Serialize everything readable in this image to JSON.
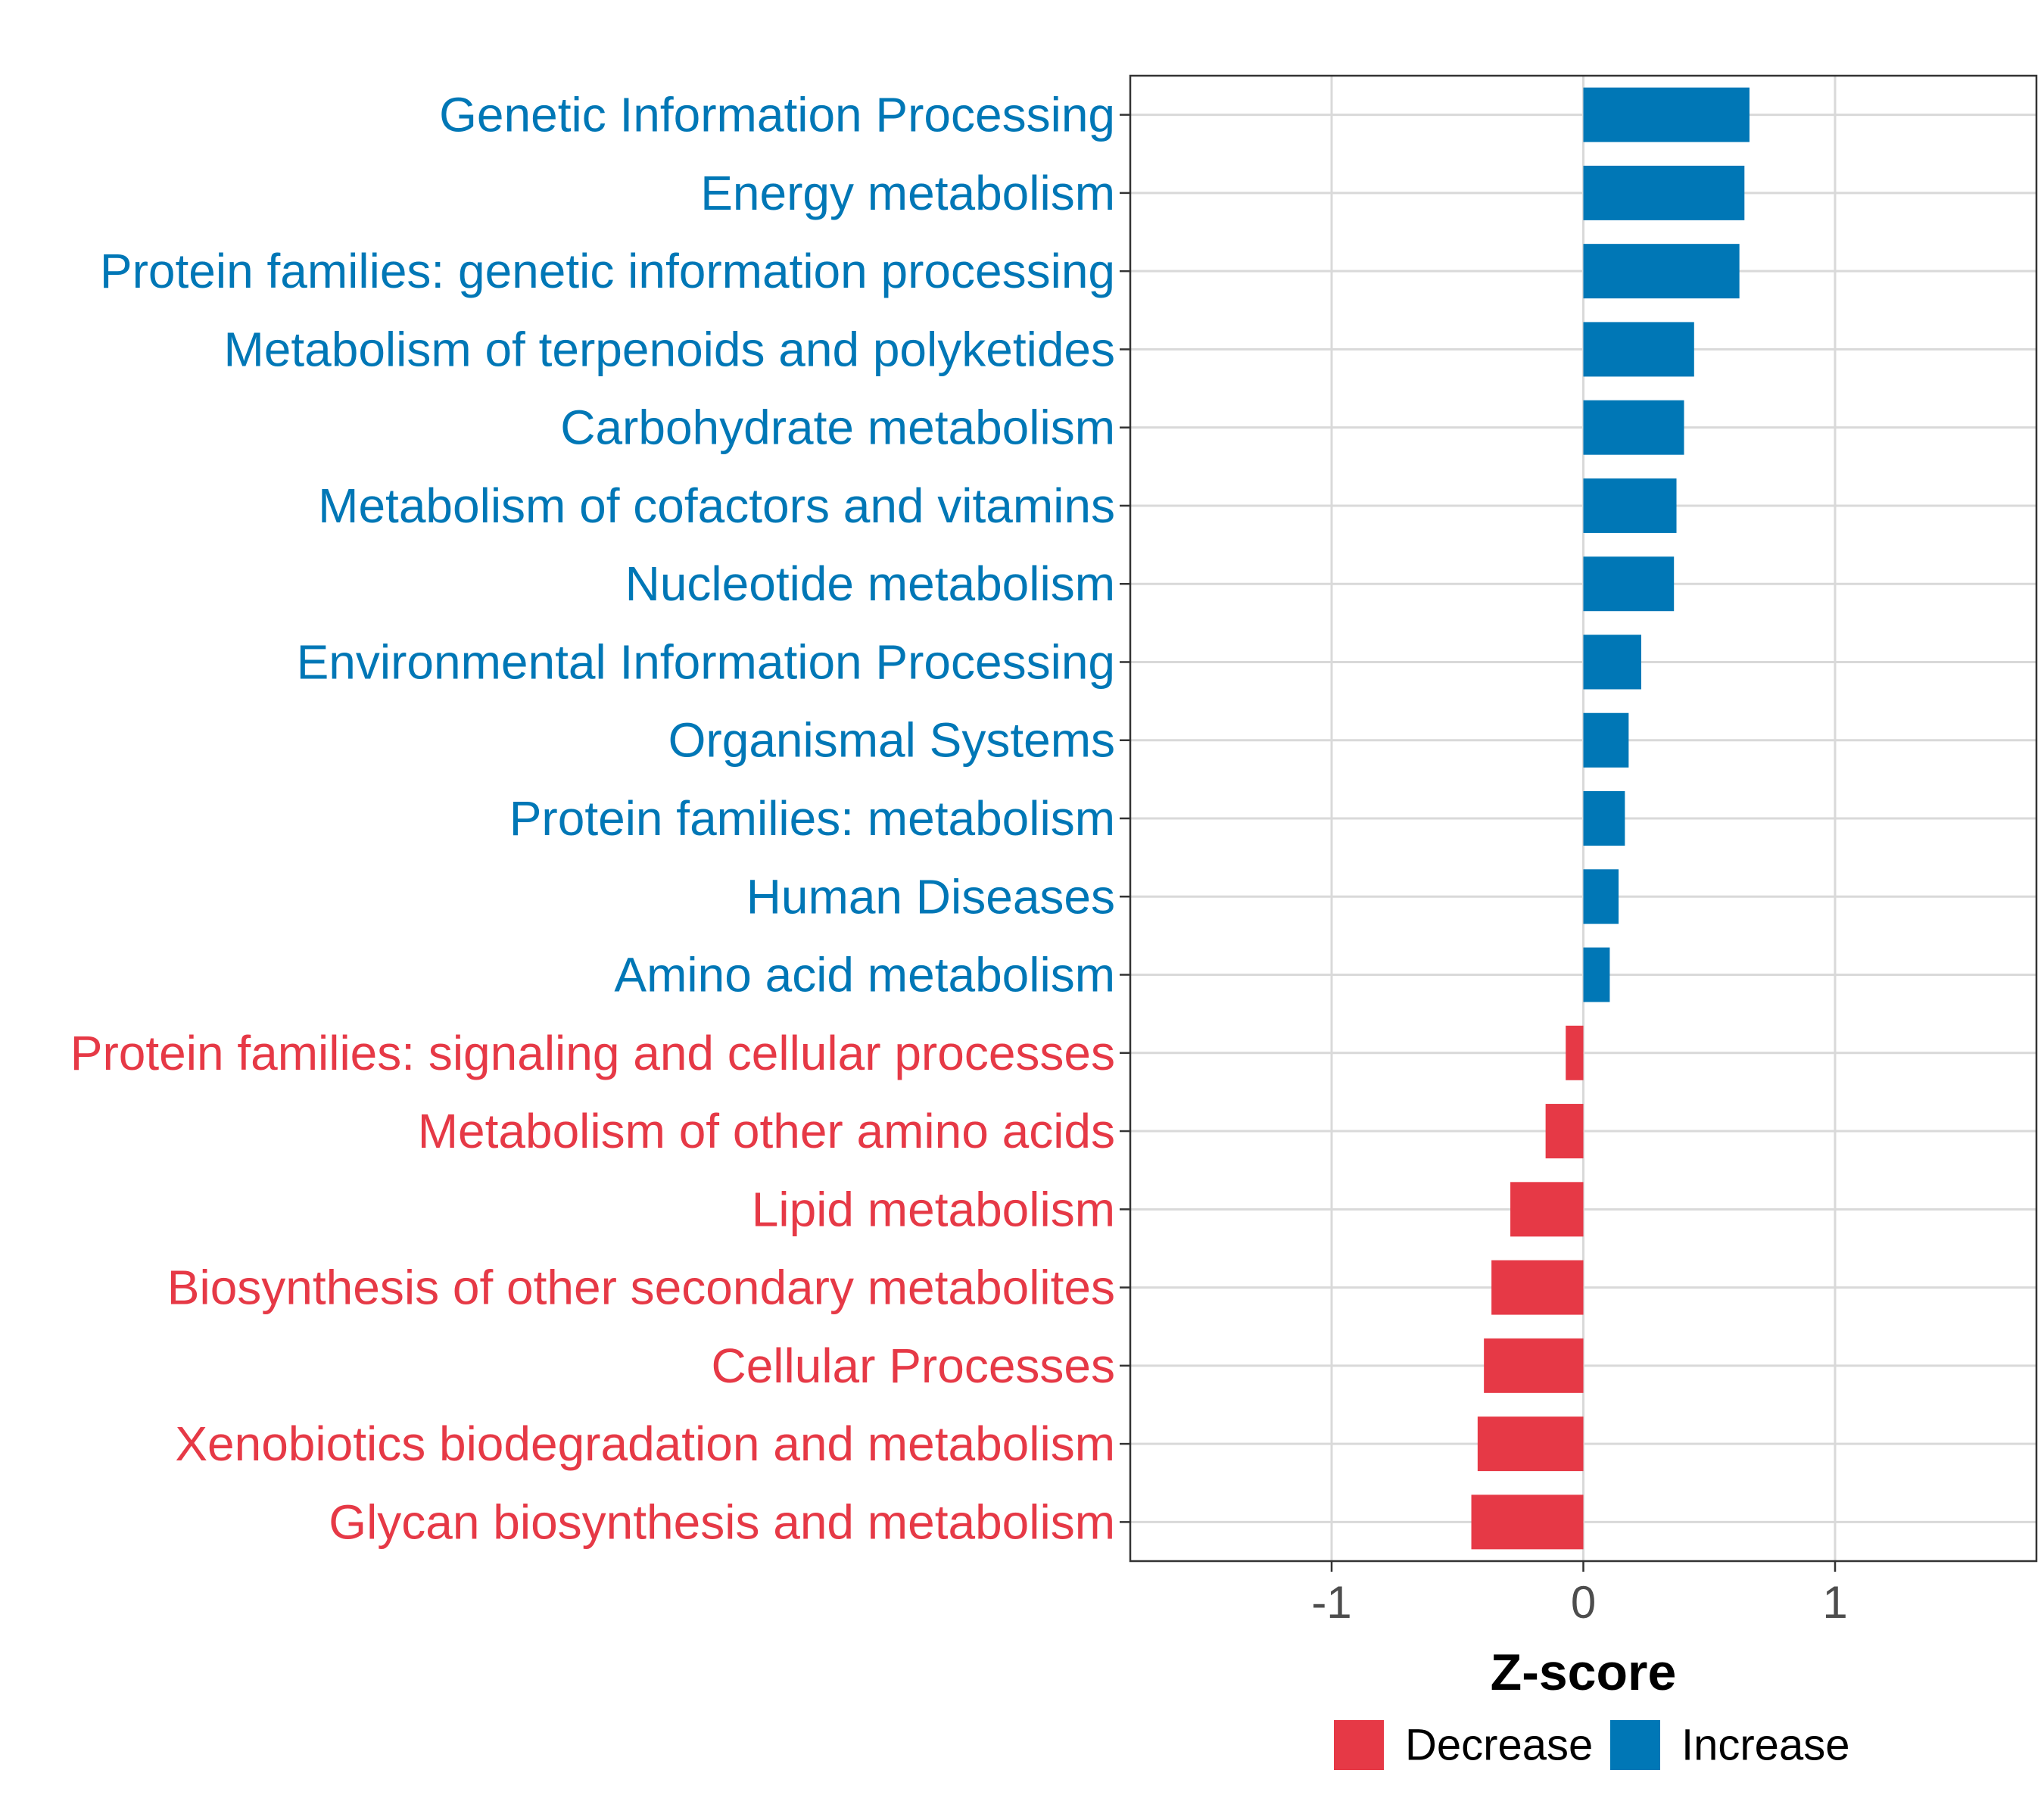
{
  "colors": {
    "increase": "#0077B6",
    "decrease": "#E63946",
    "grid": "#D9D9D9",
    "frame": "#333333"
  },
  "chart_data": {
    "type": "bar",
    "orientation": "horizontal",
    "title": "",
    "xlabel": "Z-score",
    "ylabel": "",
    "xlim": [
      -1.8,
      1.8
    ],
    "xticks": [
      -1,
      0,
      1
    ],
    "xtick_labels": [
      "-1",
      "0",
      "1"
    ],
    "grid": true,
    "legend_position": "bottom",
    "legend": [
      {
        "name": "Decrease",
        "color": "#E63946"
      },
      {
        "name": "Increase",
        "color": "#0077B6"
      }
    ],
    "categories": [
      "Genetic Information Processing",
      "Energy metabolism",
      "Protein families: genetic information processing",
      "Metabolism of terpenoids and polyketides",
      "Carbohydrate metabolism",
      "Metabolism of cofactors and vitamins",
      "Nucleotide metabolism",
      "Environmental Information Processing",
      "Organismal Systems",
      "Protein families: metabolism",
      "Human Diseases",
      "Amino acid metabolism",
      "Protein families: signaling and cellular processes",
      "Metabolism of other amino acids",
      "Lipid metabolism",
      "Biosynthesis of other secondary metabolites",
      "Cellular Processes",
      "Xenobiotics biodegradation and metabolism",
      "Glycan biosynthesis and metabolism"
    ],
    "values": [
      0.66,
      0.64,
      0.62,
      0.44,
      0.4,
      0.37,
      0.36,
      0.23,
      0.18,
      0.165,
      0.14,
      0.105,
      -0.07,
      -0.15,
      -0.29,
      -0.365,
      -0.395,
      -0.42,
      -0.445
    ],
    "groups": [
      "Increase",
      "Increase",
      "Increase",
      "Increase",
      "Increase",
      "Increase",
      "Increase",
      "Increase",
      "Increase",
      "Increase",
      "Increase",
      "Increase",
      "Decrease",
      "Decrease",
      "Decrease",
      "Decrease",
      "Decrease",
      "Decrease",
      "Decrease"
    ]
  }
}
